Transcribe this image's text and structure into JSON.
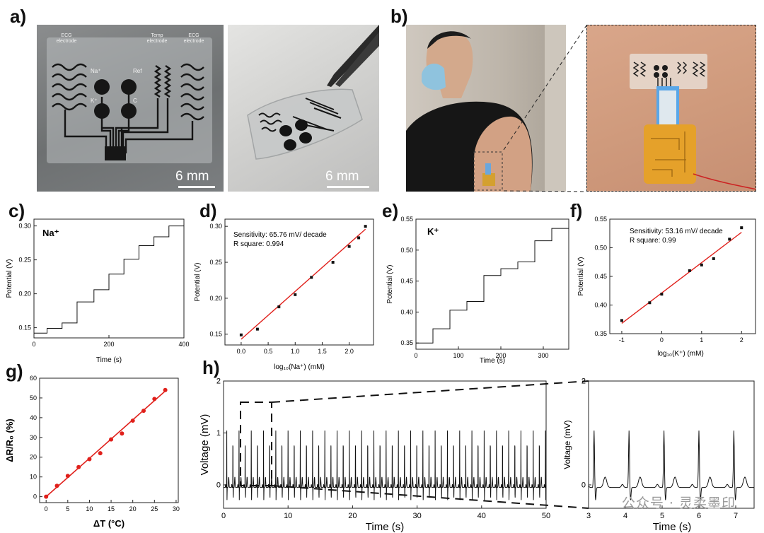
{
  "panels": {
    "a": "a)",
    "b": "b)",
    "c": "c)",
    "d": "d)",
    "e": "e)",
    "f": "f)",
    "g": "g)",
    "h": "h)"
  },
  "photo_a_left": {
    "labels": {
      "ecg_left": "ECG electrode",
      "temp": "Temp electrode",
      "ecg_right": "ECG electrode",
      "na": "Na⁺",
      "ref": "Ref",
      "k": "K⁺",
      "c": "C"
    },
    "scale": "6 mm"
  },
  "photo_a_right": {
    "scale": "6 mm"
  },
  "colors": {
    "fit_line": "#e0201b",
    "points": "#e0201b",
    "trace": "#111111"
  },
  "chart_data": [
    {
      "id": "c",
      "type": "line",
      "title": "Na⁺",
      "xlabel": "Time (s)",
      "ylabel": "Potential (V)",
      "xlim": [
        0,
        400
      ],
      "ylim": [
        0.135,
        0.31
      ],
      "xticks": [
        0,
        200,
        400
      ],
      "yticks": [
        0.15,
        0.2,
        0.25,
        0.3
      ],
      "xtick_labels": [
        "0",
        "200",
        "400"
      ],
      "ytick_labels": [
        "0.15",
        "0.20",
        "0.25",
        "0.30"
      ],
      "steps": [
        [
          0,
          0.142
        ],
        [
          35,
          0.149
        ],
        [
          75,
          0.157
        ],
        [
          115,
          0.188
        ],
        [
          160,
          0.206
        ],
        [
          200,
          0.229
        ],
        [
          240,
          0.251
        ],
        [
          280,
          0.271
        ],
        [
          320,
          0.284
        ],
        [
          360,
          0.3
        ],
        [
          400,
          0.3
        ]
      ]
    },
    {
      "id": "d",
      "type": "scatter",
      "annotation": [
        "Sensitivity: 65.76 mV/ decade",
        "R square: 0.994"
      ],
      "xlabel": "log₁₀(Na⁺) (mM)",
      "ylabel": "Potential (V)",
      "xlim": [
        -0.3,
        2.45
      ],
      "ylim": [
        0.135,
        0.31
      ],
      "xticks": [
        0,
        0.5,
        1,
        1.5,
        2
      ],
      "yticks": [
        0.15,
        0.2,
        0.25,
        0.3
      ],
      "xtick_labels": [
        "0.0",
        "0.5",
        "1.0",
        "1.5",
        "2.0"
      ],
      "ytick_labels": [
        "0.15",
        "0.20",
        "0.25",
        "0.30"
      ],
      "x": [
        0,
        0.301,
        0.699,
        1.0,
        1.301,
        1.699,
        2.0,
        2.176,
        2.301
      ],
      "y": [
        0.149,
        0.157,
        0.188,
        0.205,
        0.229,
        0.25,
        0.272,
        0.284,
        0.3
      ],
      "fit": [
        [
          0,
          0.143
        ],
        [
          2.301,
          0.296
        ]
      ]
    },
    {
      "id": "e",
      "type": "line",
      "title": "K⁺",
      "xlabel": "Time (s)",
      "ylabel": "Potential (V)",
      "xlim": [
        0,
        360
      ],
      "ylim": [
        0.34,
        0.55
      ],
      "xticks": [
        0,
        100,
        200,
        300
      ],
      "yticks": [
        0.35,
        0.4,
        0.45,
        0.5,
        0.55
      ],
      "xtick_labels": [
        "0",
        "100",
        "200",
        "300"
      ],
      "ytick_labels": [
        "0.35",
        "0.40",
        "0.45",
        "0.50",
        "0.55"
      ],
      "steps": [
        [
          0,
          0.35
        ],
        [
          40,
          0.373
        ],
        [
          80,
          0.403
        ],
        [
          120,
          0.417
        ],
        [
          160,
          0.459
        ],
        [
          200,
          0.47
        ],
        [
          240,
          0.481
        ],
        [
          280,
          0.515
        ],
        [
          320,
          0.535
        ],
        [
          360,
          0.535
        ]
      ]
    },
    {
      "id": "f",
      "type": "scatter",
      "annotation": [
        "Sensitivity: 53.16 mV/ decade",
        "R square: 0.99"
      ],
      "xlabel": "log₁₀(K⁺) (mM)",
      "ylabel": "Potential (V)",
      "xlim": [
        -1.3,
        2.35
      ],
      "ylim": [
        0.35,
        0.55
      ],
      "xticks": [
        -1,
        0,
        1,
        2
      ],
      "yticks": [
        0.35,
        0.4,
        0.45,
        0.5,
        0.55
      ],
      "xtick_labels": [
        "-1",
        "0",
        "1",
        "2"
      ],
      "ytick_labels": [
        "0.35",
        "0.40",
        "0.45",
        "0.50",
        "0.55"
      ],
      "x": [
        -1,
        -0.301,
        0,
        0.699,
        1.0,
        1.301,
        1.699,
        2.0
      ],
      "y": [
        0.373,
        0.404,
        0.419,
        0.46,
        0.47,
        0.481,
        0.515,
        0.535
      ],
      "fit": [
        [
          -1,
          0.368
        ],
        [
          2,
          0.527
        ]
      ]
    },
    {
      "id": "g",
      "type": "scatter",
      "xlabel": "ΔT (°C)",
      "ylabel": "ΔR/R₀ (%)",
      "xlim": [
        -1.5,
        30.5
      ],
      "ylim": [
        -3,
        60
      ],
      "xticks": [
        0,
        5,
        10,
        15,
        20,
        25,
        30
      ],
      "yticks": [
        0,
        10,
        20,
        30,
        40,
        50,
        60
      ],
      "xtick_labels": [
        "0",
        "5",
        "10",
        "15",
        "20",
        "25",
        "30"
      ],
      "ytick_labels": [
        "0",
        "10",
        "20",
        "30",
        "40",
        "50",
        "60"
      ],
      "x": [
        0,
        2.5,
        5,
        7.5,
        10,
        12.5,
        15,
        17.5,
        20,
        22.5,
        25,
        27.5
      ],
      "y": [
        0,
        5.5,
        10.5,
        15,
        19,
        22,
        29,
        32,
        38.5,
        43.5,
        49.5,
        54
      ],
      "fit": [
        [
          0,
          0
        ],
        [
          27.5,
          53.5
        ]
      ]
    },
    {
      "id": "h_main",
      "type": "line",
      "xlabel": "Time (s)",
      "ylabel": "Voltage (mV)",
      "xlim": [
        0,
        50
      ],
      "ylim": [
        -0.45,
        2
      ],
      "xticks": [
        0,
        10,
        20,
        30,
        40,
        50
      ],
      "yticks": [
        0,
        1,
        2
      ],
      "xtick_labels": [
        "0",
        "10",
        "20",
        "30",
        "40",
        "50"
      ],
      "ytick_labels": [
        "0",
        "1",
        "2"
      ],
      "beat_interval_s": 0.95,
      "r_amplitude_mv": 1.1
    },
    {
      "id": "h_zoom",
      "type": "line",
      "xlabel": "Time (s)",
      "ylabel": "Voltage (mV)",
      "xlim": [
        3,
        7.5
      ],
      "ylim": [
        -0.45,
        2
      ],
      "xticks": [
        3,
        4,
        5,
        6,
        7
      ],
      "yticks": [
        0,
        2
      ],
      "xtick_labels": [
        "3",
        "4",
        "5",
        "6",
        "7"
      ],
      "ytick_labels": [
        "0",
        "2"
      ],
      "beats_s": [
        3.15,
        4.1,
        5.05,
        6.0,
        6.95
      ]
    }
  ],
  "watermark": "公众号 · 灵柔墨印"
}
